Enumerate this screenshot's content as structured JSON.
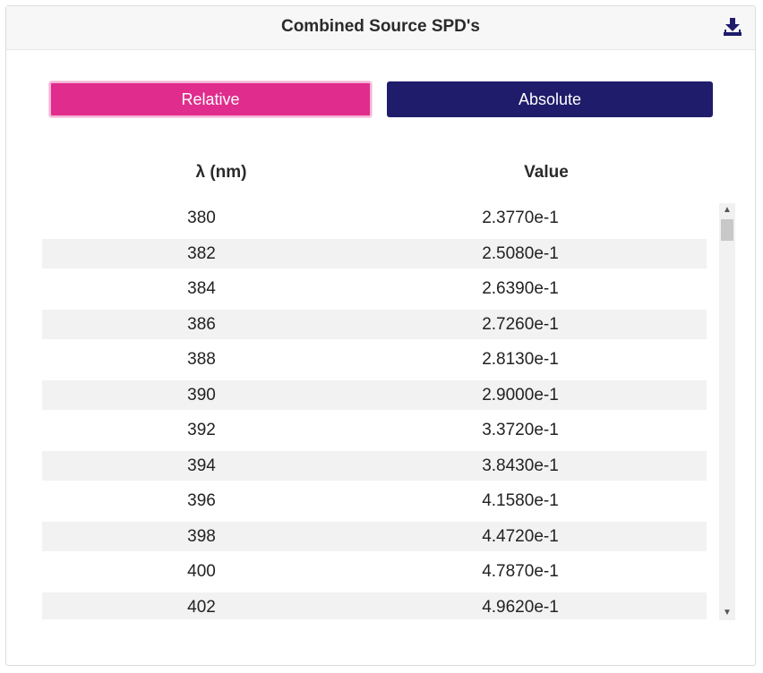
{
  "panel": {
    "title": "Combined Source SPD's",
    "download_icon": "download-icon"
  },
  "toggle": {
    "relative_label": "Relative",
    "absolute_label": "Absolute",
    "active": "Relative",
    "colors": {
      "relative": "#e02c8c",
      "absolute": "#1f1c6b"
    }
  },
  "table": {
    "columns": [
      "λ (nm)",
      "Value"
    ],
    "rows": [
      {
        "wavelength": "380",
        "value": "2.3770e-1"
      },
      {
        "wavelength": "382",
        "value": "2.5080e-1"
      },
      {
        "wavelength": "384",
        "value": "2.6390e-1"
      },
      {
        "wavelength": "386",
        "value": "2.7260e-1"
      },
      {
        "wavelength": "388",
        "value": "2.8130e-1"
      },
      {
        "wavelength": "390",
        "value": "2.9000e-1"
      },
      {
        "wavelength": "392",
        "value": "3.3720e-1"
      },
      {
        "wavelength": "394",
        "value": "3.8430e-1"
      },
      {
        "wavelength": "396",
        "value": "4.1580e-1"
      },
      {
        "wavelength": "398",
        "value": "4.4720e-1"
      },
      {
        "wavelength": "400",
        "value": "4.7870e-1"
      },
      {
        "wavelength": "402",
        "value": "4.9620e-1"
      }
    ]
  }
}
